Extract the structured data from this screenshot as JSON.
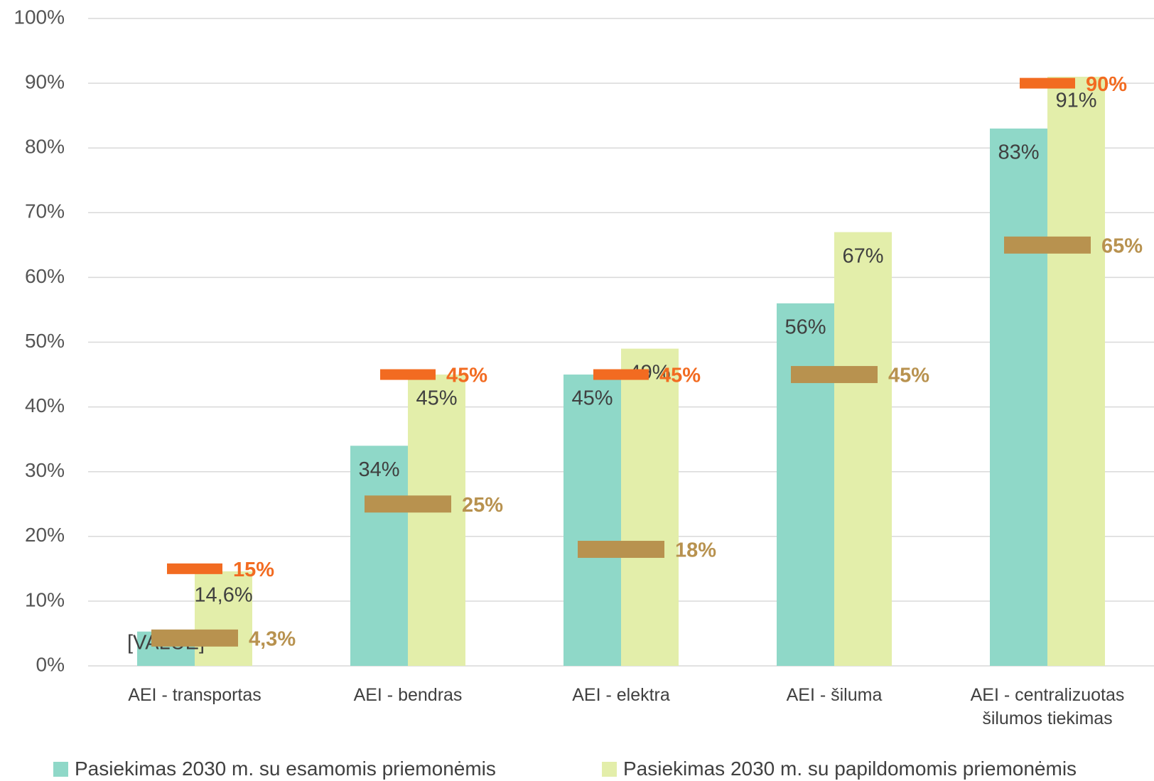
{
  "chart_data": {
    "type": "bar",
    "categories": [
      "AEI -  transportas",
      "AEI -  bendras",
      "AEI -  elektra",
      "AEI - šiluma",
      "AEI - centralizuotas šilumos tiekimas"
    ],
    "series": [
      {
        "name": "Pasiekimas 2030 m. su esamomis priemonėmis",
        "color": "#8fd8c8",
        "values": [
          5.3,
          34,
          45,
          56,
          83
        ],
        "value_labels": [
          "[VALUE]",
          "34%",
          "45%",
          "56%",
          "83%"
        ]
      },
      {
        "name": "Pasiekimas 2030 m. su papildomomis priemonėmis",
        "color": "#e3eeaa",
        "values": [
          14.6,
          45,
          49,
          67,
          91
        ],
        "value_labels": [
          "14,6%",
          "45%",
          "49%",
          "67%",
          "91%"
        ]
      }
    ],
    "markers": [
      {
        "color": "#f26b21",
        "values": [
          15,
          45,
          45,
          null,
          90
        ],
        "value_labels": [
          "15%",
          "45%",
          "45%",
          null,
          "90%"
        ]
      },
      {
        "color": "#b8924f",
        "values": [
          4.3,
          25,
          18,
          45,
          65
        ],
        "value_labels": [
          "4,3%",
          "25%",
          "18%",
          "45%",
          "65%"
        ]
      }
    ],
    "ylim": [
      0,
      100
    ],
    "yticks": [
      {
        "value": 0,
        "label": "0%"
      },
      {
        "value": 10,
        "label": "10%"
      },
      {
        "value": 20,
        "label": "20%"
      },
      {
        "value": 30,
        "label": "30%"
      },
      {
        "value": 40,
        "label": "40%"
      },
      {
        "value": 50,
        "label": "50%"
      },
      {
        "value": 60,
        "label": "60%"
      },
      {
        "value": 70,
        "label": "70%"
      },
      {
        "value": 80,
        "label": "80%"
      },
      {
        "value": 90,
        "label": "90%"
      },
      {
        "value": 100,
        "label": "100%"
      }
    ],
    "grid": true
  }
}
